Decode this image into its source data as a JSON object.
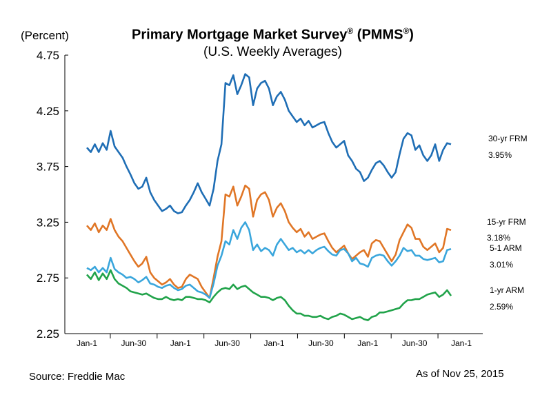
{
  "chart_data": {
    "type": "line",
    "title": "Primary Mortgage Market Survey",
    "title_mark": "®",
    "title_paren": "(PMMS",
    "title_close": ")",
    "subtitle": "(U.S. Weekly Averages)",
    "ylabel": "(Percent)",
    "ylim": [
      2.25,
      4.75
    ],
    "yticks": [
      "4.75",
      "4.25",
      "3.75",
      "3.25",
      "2.75",
      "2.25"
    ],
    "yticks_values": [
      4.75,
      4.25,
      3.75,
      3.25,
      2.75,
      2.25
    ],
    "xticks": [
      "Jan-1",
      "Jun-30",
      "Jan-1",
      "Jun-30",
      "Jan-1",
      "Jun-30",
      "Jan-1",
      "Jun-30",
      "Jan-1"
    ],
    "source": "Source: Freddie Mac",
    "as_of": "As of Nov 25, 2015",
    "series": [
      {
        "name": "30-yr FRM",
        "last_label": "3.95%",
        "color": "#1f6eb5",
        "values": [
          3.92,
          3.88,
          3.95,
          3.88,
          3.96,
          3.9,
          4.07,
          3.93,
          3.88,
          3.83,
          3.75,
          3.68,
          3.6,
          3.55,
          3.57,
          3.65,
          3.52,
          3.45,
          3.4,
          3.35,
          3.37,
          3.4,
          3.35,
          3.33,
          3.34,
          3.4,
          3.45,
          3.52,
          3.6,
          3.52,
          3.46,
          3.4,
          3.55,
          3.8,
          3.95,
          4.5,
          4.48,
          4.57,
          4.4,
          4.48,
          4.58,
          4.55,
          4.3,
          4.45,
          4.5,
          4.52,
          4.45,
          4.3,
          4.38,
          4.42,
          4.35,
          4.25,
          4.2,
          4.15,
          4.18,
          4.12,
          4.16,
          4.1,
          4.12,
          4.14,
          4.15,
          4.05,
          3.97,
          3.92,
          3.95,
          3.98,
          3.85,
          3.8,
          3.73,
          3.7,
          3.62,
          3.65,
          3.72,
          3.78,
          3.8,
          3.76,
          3.7,
          3.65,
          3.7,
          3.86,
          4.0,
          4.05,
          4.03,
          3.9,
          3.94,
          3.85,
          3.8,
          3.85,
          3.95,
          3.8,
          3.9,
          3.96,
          3.95
        ]
      },
      {
        "name": "15-yr FRM",
        "last_label": "3.18%",
        "color": "#e07626",
        "values": [
          3.22,
          3.18,
          3.24,
          3.16,
          3.22,
          3.18,
          3.28,
          3.18,
          3.12,
          3.08,
          3.02,
          2.96,
          2.9,
          2.85,
          2.88,
          2.94,
          2.8,
          2.75,
          2.72,
          2.69,
          2.71,
          2.74,
          2.69,
          2.66,
          2.67,
          2.74,
          2.78,
          2.76,
          2.74,
          2.67,
          2.62,
          2.57,
          2.75,
          2.94,
          3.08,
          3.5,
          3.48,
          3.57,
          3.4,
          3.48,
          3.58,
          3.55,
          3.3,
          3.45,
          3.5,
          3.52,
          3.45,
          3.3,
          3.38,
          3.42,
          3.35,
          3.25,
          3.2,
          3.16,
          3.19,
          3.12,
          3.16,
          3.1,
          3.12,
          3.14,
          3.15,
          3.08,
          3.02,
          2.98,
          3.01,
          3.04,
          2.97,
          2.92,
          2.95,
          2.98,
          3.0,
          2.94,
          3.06,
          3.09,
          3.08,
          3.02,
          2.96,
          2.9,
          2.96,
          3.09,
          3.16,
          3.23,
          3.2,
          3.1,
          3.1,
          3.03,
          3.0,
          3.03,
          3.06,
          2.98,
          3.02,
          3.19,
          3.18
        ]
      },
      {
        "name": "5-1 ARM",
        "last_label": "3.01%",
        "color": "#3aa6dc",
        "values": [
          2.84,
          2.82,
          2.85,
          2.8,
          2.84,
          2.8,
          2.93,
          2.83,
          2.8,
          2.78,
          2.75,
          2.76,
          2.74,
          2.71,
          2.73,
          2.76,
          2.7,
          2.69,
          2.67,
          2.66,
          2.68,
          2.69,
          2.66,
          2.64,
          2.65,
          2.68,
          2.69,
          2.66,
          2.63,
          2.62,
          2.6,
          2.57,
          2.7,
          2.86,
          2.95,
          3.08,
          3.05,
          3.18,
          3.1,
          3.2,
          3.25,
          3.18,
          3.0,
          3.05,
          2.99,
          3.02,
          3.0,
          2.95,
          3.05,
          3.1,
          3.05,
          3.0,
          3.02,
          2.98,
          3.0,
          2.97,
          3.0,
          2.97,
          3.0,
          3.02,
          3.03,
          2.99,
          2.96,
          2.95,
          3.0,
          3.01,
          2.97,
          2.9,
          2.93,
          2.88,
          2.87,
          2.85,
          2.93,
          2.95,
          2.96,
          2.95,
          2.9,
          2.86,
          2.9,
          2.95,
          3.02,
          2.99,
          3.0,
          2.95,
          2.95,
          2.92,
          2.91,
          2.92,
          2.93,
          2.89,
          2.9,
          3.0,
          3.01
        ]
      },
      {
        "name": "1-yr ARM",
        "last_label": "2.59%",
        "color": "#21a34a",
        "values": [
          2.78,
          2.74,
          2.8,
          2.73,
          2.79,
          2.74,
          2.82,
          2.74,
          2.7,
          2.68,
          2.66,
          2.63,
          2.62,
          2.61,
          2.6,
          2.61,
          2.59,
          2.57,
          2.56,
          2.56,
          2.58,
          2.56,
          2.55,
          2.56,
          2.55,
          2.58,
          2.58,
          2.57,
          2.56,
          2.56,
          2.55,
          2.53,
          2.58,
          2.62,
          2.65,
          2.66,
          2.65,
          2.69,
          2.65,
          2.67,
          2.68,
          2.65,
          2.62,
          2.6,
          2.58,
          2.58,
          2.57,
          2.55,
          2.57,
          2.58,
          2.55,
          2.5,
          2.46,
          2.43,
          2.43,
          2.41,
          2.41,
          2.4,
          2.4,
          2.41,
          2.39,
          2.38,
          2.4,
          2.41,
          2.43,
          2.42,
          2.4,
          2.38,
          2.39,
          2.4,
          2.38,
          2.37,
          2.4,
          2.41,
          2.44,
          2.44,
          2.45,
          2.46,
          2.47,
          2.48,
          2.52,
          2.55,
          2.55,
          2.56,
          2.56,
          2.58,
          2.6,
          2.61,
          2.62,
          2.58,
          2.6,
          2.64,
          2.59
        ]
      }
    ]
  }
}
